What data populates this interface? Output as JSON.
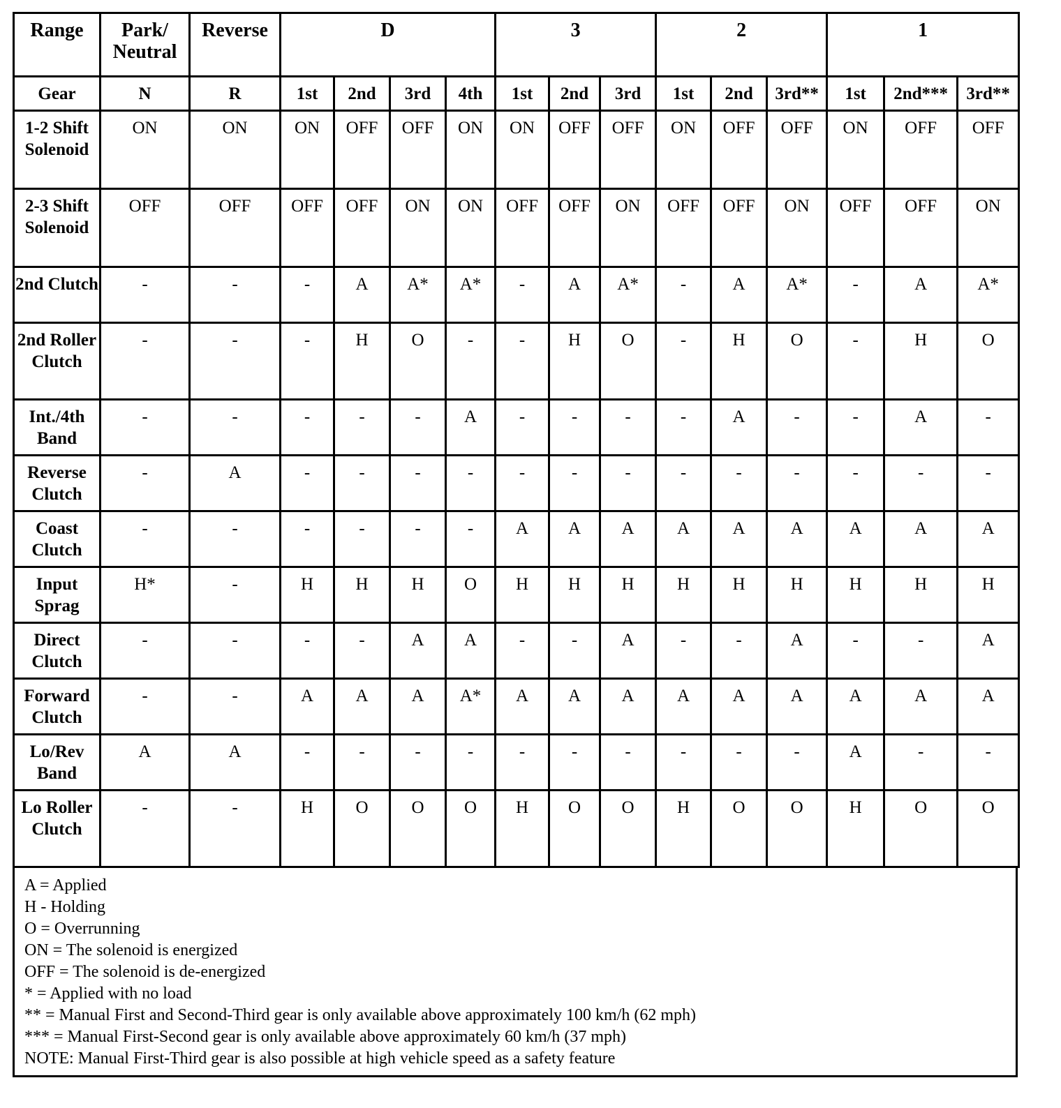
{
  "header": {
    "range_label": "Range",
    "ranges": [
      {
        "label": "Park/ Neutral",
        "span": 1
      },
      {
        "label": "Reverse",
        "span": 1
      },
      {
        "label": "D",
        "span": 4
      },
      {
        "label": "3",
        "span": 3
      },
      {
        "label": "2",
        "span": 3
      },
      {
        "label": "1",
        "span": 3
      }
    ],
    "gear_label": "Gear",
    "gears": [
      "N",
      "R",
      "1st",
      "2nd",
      "3rd",
      "4th",
      "1st",
      "2nd",
      "3rd",
      "1st",
      "2nd",
      "3rd**",
      "1st",
      "2nd***",
      "3rd**"
    ]
  },
  "rows": [
    {
      "label": "1-2 Shift Solenoid",
      "height": "tall",
      "values": [
        "ON",
        "ON",
        "ON",
        "OFF",
        "OFF",
        "ON",
        "ON",
        "OFF",
        "OFF",
        "ON",
        "OFF",
        "OFF",
        "ON",
        "OFF",
        "OFF"
      ]
    },
    {
      "label": "2-3 Shift Solenoid",
      "height": "tall",
      "values": [
        "OFF",
        "OFF",
        "OFF",
        "OFF",
        "ON",
        "ON",
        "OFF",
        "OFF",
        "ON",
        "OFF",
        "OFF",
        "ON",
        "OFF",
        "OFF",
        "ON"
      ]
    },
    {
      "label": "2nd Clutch",
      "height": "short",
      "values": [
        "-",
        "-",
        "-",
        "A",
        "A*",
        "A*",
        "-",
        "A",
        "A*",
        "-",
        "A",
        "A*",
        "-",
        "A",
        "A*"
      ]
    },
    {
      "label": "2nd Roller Clutch",
      "height": "tall",
      "values": [
        "-",
        "-",
        "-",
        "H",
        "O",
        "-",
        "-",
        "H",
        "O",
        "-",
        "H",
        "O",
        "-",
        "H",
        "O"
      ]
    },
    {
      "label": "Int./4th Band",
      "height": "short",
      "values": [
        "-",
        "-",
        "-",
        "-",
        "-",
        "A",
        "-",
        "-",
        "-",
        "-",
        "A",
        "-",
        "-",
        "A",
        "-"
      ]
    },
    {
      "label": "Reverse Clutch",
      "height": "short",
      "values": [
        "-",
        "A",
        "-",
        "-",
        "-",
        "-",
        "-",
        "-",
        "-",
        "-",
        "-",
        "-",
        "-",
        "-",
        "-"
      ]
    },
    {
      "label": "Coast Clutch",
      "height": "short",
      "values": [
        "-",
        "-",
        "-",
        "-",
        "-",
        "-",
        "A",
        "A",
        "A",
        "A",
        "A",
        "A",
        "A",
        "A",
        "A"
      ]
    },
    {
      "label": "Input Sprag",
      "height": "short",
      "values": [
        "H*",
        "-",
        "H",
        "H",
        "H",
        "O",
        "H",
        "H",
        "H",
        "H",
        "H",
        "H",
        "H",
        "H",
        "H"
      ]
    },
    {
      "label": "Direct Clutch",
      "height": "short",
      "values": [
        "-",
        "-",
        "-",
        "-",
        "A",
        "A",
        "-",
        "-",
        "A",
        "-",
        "-",
        "A",
        "-",
        "-",
        "A"
      ]
    },
    {
      "label": "Forward Clutch",
      "height": "short",
      "values": [
        "-",
        "-",
        "A",
        "A",
        "A",
        "A*",
        "A",
        "A",
        "A",
        "A",
        "A",
        "A",
        "A",
        "A",
        "A"
      ]
    },
    {
      "label": "Lo/Rev Band",
      "height": "short",
      "values": [
        "A",
        "A",
        "-",
        "-",
        "-",
        "-",
        "-",
        "-",
        "-",
        "-",
        "-",
        "-",
        "A",
        "-",
        "-"
      ]
    },
    {
      "label": "Lo Roller Clutch",
      "height": "tall",
      "values": [
        "-",
        "-",
        "H",
        "O",
        "O",
        "O",
        "H",
        "O",
        "O",
        "H",
        "O",
        "O",
        "H",
        "O",
        "O"
      ]
    }
  ],
  "legend": [
    "A = Applied",
    "H - Holding",
    "O = Overrunning",
    "ON = The solenoid is energized",
    "OFF = The solenoid is de-energized",
    "* = Applied with no load",
    "** = Manual First and Second-Third gear is only available above approximately 100 km/h (62 mph)",
    "*** = Manual First-Second gear is only available above approximately 60 km/h (37 mph)",
    "NOTE: Manual First-Third gear is also possible at high vehicle speed as a safety feature"
  ]
}
